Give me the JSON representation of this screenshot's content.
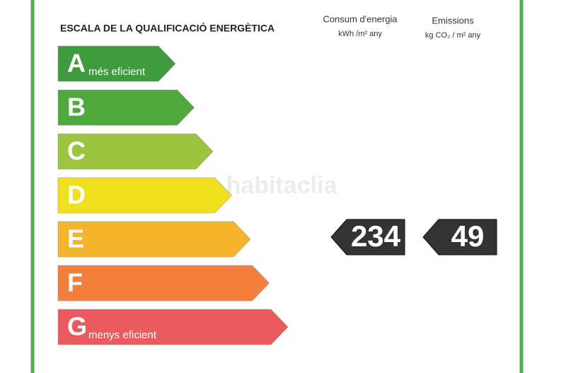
{
  "header": {
    "title": "ESCALA DE LA QUALIFICACIÓ ENERGÈTICA"
  },
  "columns": [
    {
      "title": "Consum d'energia",
      "unit": "kWh /m² any",
      "value": "234"
    },
    {
      "title": "Emissions",
      "unit": "kg CO₂ / m² any",
      "value": "49"
    }
  ],
  "rating_row": 4,
  "classes": [
    {
      "letter": "A",
      "label": "més eficient",
      "color": "#3e9b3e"
    },
    {
      "letter": "B",
      "color": "#4ea83c"
    },
    {
      "letter": "C",
      "color": "#9dc43f"
    },
    {
      "letter": "D",
      "color": "#f0df1c"
    },
    {
      "letter": "E",
      "color": "#f4b42c"
    },
    {
      "letter": "F",
      "color": "#f2803c"
    },
    {
      "letter": "G",
      "label": "menys eficient",
      "color": "#ea5a5e"
    }
  ],
  "watermark": "habitaclia"
}
